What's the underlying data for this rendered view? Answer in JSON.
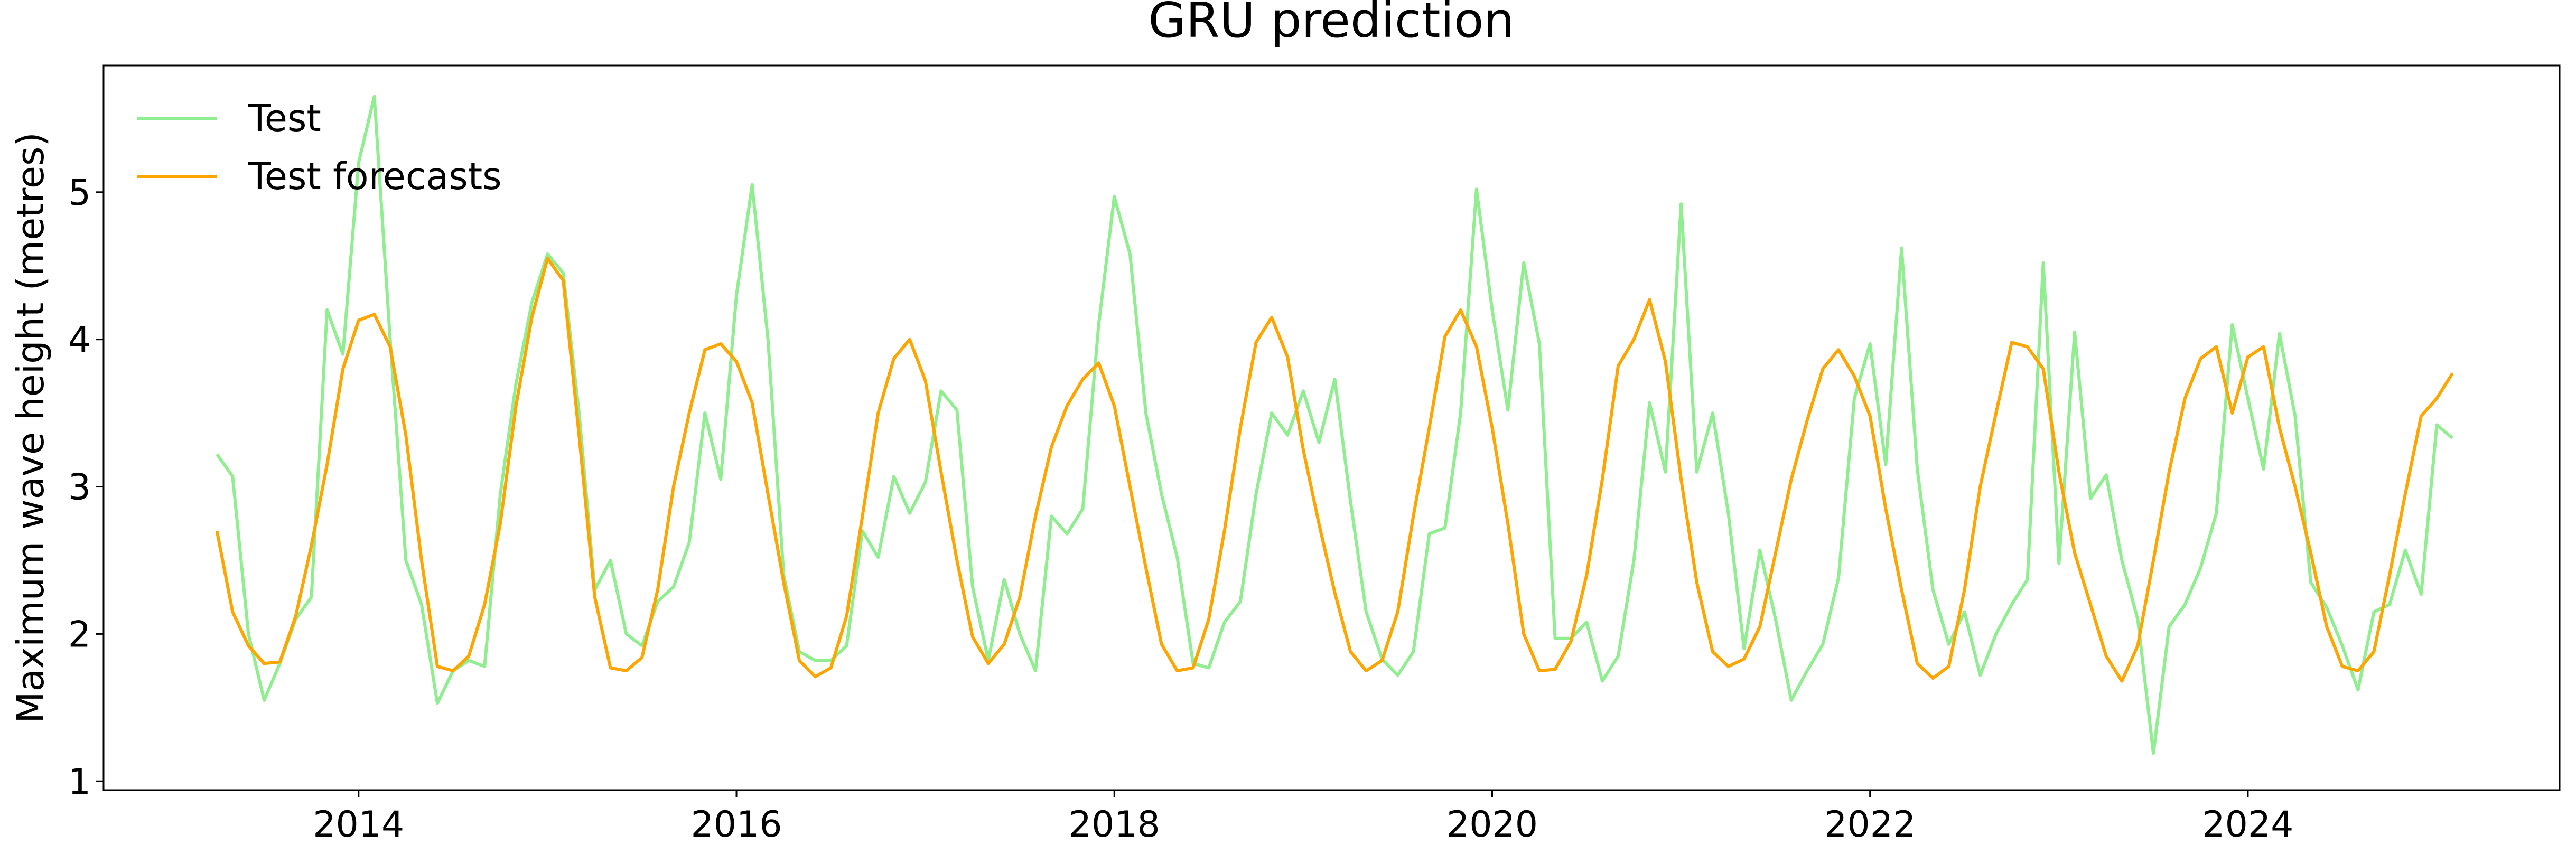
{
  "chart_data": {
    "type": "line",
    "title": "GRU prediction",
    "ylabel": "Maximum wave height (metres)",
    "x": [
      2013.25,
      2013.333,
      2013.417,
      2013.5,
      2013.583,
      2013.667,
      2013.75,
      2013.833,
      2013.917,
      2014.0,
      2014.083,
      2014.167,
      2014.25,
      2014.333,
      2014.417,
      2014.5,
      2014.583,
      2014.667,
      2014.75,
      2014.833,
      2014.917,
      2015.0,
      2015.083,
      2015.167,
      2015.25,
      2015.333,
      2015.417,
      2015.5,
      2015.583,
      2015.667,
      2015.75,
      2015.833,
      2015.917,
      2016.0,
      2016.083,
      2016.167,
      2016.25,
      2016.333,
      2016.417,
      2016.5,
      2016.583,
      2016.667,
      2016.75,
      2016.833,
      2016.917,
      2017.0,
      2017.083,
      2017.167,
      2017.25,
      2017.333,
      2017.417,
      2017.5,
      2017.583,
      2017.667,
      2017.75,
      2017.833,
      2017.917,
      2018.0,
      2018.083,
      2018.167,
      2018.25,
      2018.333,
      2018.417,
      2018.5,
      2018.583,
      2018.667,
      2018.75,
      2018.833,
      2018.917,
      2019.0,
      2019.083,
      2019.167,
      2019.25,
      2019.333,
      2019.417,
      2019.5,
      2019.583,
      2019.667,
      2019.75,
      2019.833,
      2019.917,
      2020.0,
      2020.083,
      2020.167,
      2020.25,
      2020.333,
      2020.417,
      2020.5,
      2020.583,
      2020.667,
      2020.75,
      2020.833,
      2020.917,
      2021.0,
      2021.083,
      2021.167,
      2021.25,
      2021.333,
      2021.417,
      2021.5,
      2021.583,
      2021.667,
      2021.75,
      2021.833,
      2021.917,
      2022.0,
      2022.083,
      2022.167,
      2022.25,
      2022.333,
      2022.417,
      2022.5,
      2022.583,
      2022.667,
      2022.75,
      2022.833,
      2022.917,
      2023.0,
      2023.083,
      2023.167,
      2023.25,
      2023.333,
      2023.417,
      2023.5,
      2023.583,
      2023.667,
      2023.75,
      2023.833,
      2023.917,
      2024.0,
      2024.083,
      2024.167,
      2024.25,
      2024.333,
      2024.417,
      2024.5,
      2024.583,
      2024.667,
      2024.75,
      2024.833,
      2024.917,
      2025.0,
      2025.083
    ],
    "series": [
      {
        "name": "Test",
        "color": "#90ee90",
        "values": [
          3.22,
          3.07,
          2.0,
          1.55,
          1.8,
          2.1,
          2.25,
          4.2,
          3.9,
          5.2,
          5.65,
          4.0,
          2.5,
          2.2,
          1.53,
          1.75,
          1.82,
          1.78,
          2.95,
          3.7,
          4.25,
          4.58,
          4.45,
          3.5,
          2.3,
          2.5,
          2.0,
          1.92,
          2.22,
          2.32,
          2.62,
          3.5,
          3.05,
          4.3,
          5.05,
          4.0,
          2.4,
          1.88,
          1.82,
          1.82,
          1.92,
          2.7,
          2.52,
          3.07,
          2.82,
          3.03,
          3.65,
          3.52,
          2.32,
          1.82,
          2.37,
          2.0,
          1.75,
          2.8,
          2.68,
          2.85,
          4.1,
          4.97,
          4.58,
          3.5,
          2.95,
          2.52,
          1.8,
          1.77,
          2.08,
          2.22,
          2.95,
          3.5,
          3.35,
          3.65,
          3.3,
          3.73,
          2.9,
          2.15,
          1.83,
          1.72,
          1.88,
          2.68,
          2.72,
          3.5,
          5.02,
          4.2,
          3.52,
          4.52,
          3.97,
          1.97,
          1.97,
          2.08,
          1.68,
          1.85,
          2.5,
          3.57,
          3.1,
          4.92,
          3.1,
          3.5,
          2.82,
          1.9,
          2.57,
          2.1,
          1.55,
          1.75,
          1.93,
          2.38,
          3.6,
          3.97,
          3.15,
          4.62,
          3.12,
          2.3,
          1.93,
          2.15,
          1.72,
          2.0,
          2.2,
          2.37,
          4.52,
          2.48,
          4.05,
          2.92,
          3.08,
          2.5,
          2.1,
          1.19,
          2.05,
          2.2,
          2.45,
          2.82,
          4.1,
          3.6,
          3.12,
          4.04,
          3.48,
          2.35,
          2.18,
          1.92,
          1.62,
          2.15,
          2.2,
          2.57,
          2.27,
          3.42,
          3.33
        ]
      },
      {
        "name": "Test forecasts",
        "color": "#ffa500",
        "values": [
          2.7,
          2.15,
          1.92,
          1.8,
          1.81,
          2.12,
          2.6,
          3.15,
          3.8,
          4.13,
          4.17,
          3.95,
          3.35,
          2.5,
          1.78,
          1.75,
          1.85,
          2.2,
          2.75,
          3.55,
          4.15,
          4.55,
          4.4,
          3.35,
          2.25,
          1.77,
          1.75,
          1.84,
          2.3,
          3.0,
          3.5,
          3.93,
          3.97,
          3.85,
          3.57,
          2.95,
          2.35,
          1.82,
          1.71,
          1.77,
          2.12,
          2.8,
          3.5,
          3.87,
          4.0,
          3.72,
          3.1,
          2.5,
          1.98,
          1.8,
          1.93,
          2.25,
          2.8,
          3.27,
          3.55,
          3.73,
          3.84,
          3.55,
          3.0,
          2.45,
          1.93,
          1.75,
          1.77,
          2.1,
          2.7,
          3.4,
          3.98,
          4.15,
          3.88,
          3.25,
          2.75,
          2.28,
          1.88,
          1.75,
          1.82,
          2.15,
          2.8,
          3.4,
          4.02,
          4.2,
          3.95,
          3.4,
          2.75,
          2.0,
          1.75,
          1.76,
          1.95,
          2.4,
          3.05,
          3.82,
          4.0,
          4.27,
          3.85,
          3.05,
          2.35,
          1.88,
          1.78,
          1.83,
          2.05,
          2.55,
          3.05,
          3.45,
          3.8,
          3.93,
          3.75,
          3.48,
          2.85,
          2.3,
          1.8,
          1.7,
          1.78,
          2.3,
          3.0,
          3.5,
          3.98,
          3.95,
          3.8,
          3.1,
          2.55,
          2.2,
          1.85,
          1.68,
          1.92,
          2.5,
          3.1,
          3.6,
          3.87,
          3.95,
          3.5,
          3.88,
          3.95,
          3.4,
          3.0,
          2.55,
          2.05,
          1.78,
          1.75,
          1.88,
          2.4,
          2.95,
          3.48,
          3.6,
          3.77
        ]
      }
    ],
    "xlim": [
      2012.65,
      2025.65
    ],
    "xticks": [
      2014,
      2016,
      2018,
      2020,
      2022,
      2024
    ],
    "ylim": [
      0.94,
      5.86
    ],
    "yticks": [
      1,
      2,
      3,
      4,
      5
    ],
    "grid": false,
    "legend": "upper left"
  }
}
